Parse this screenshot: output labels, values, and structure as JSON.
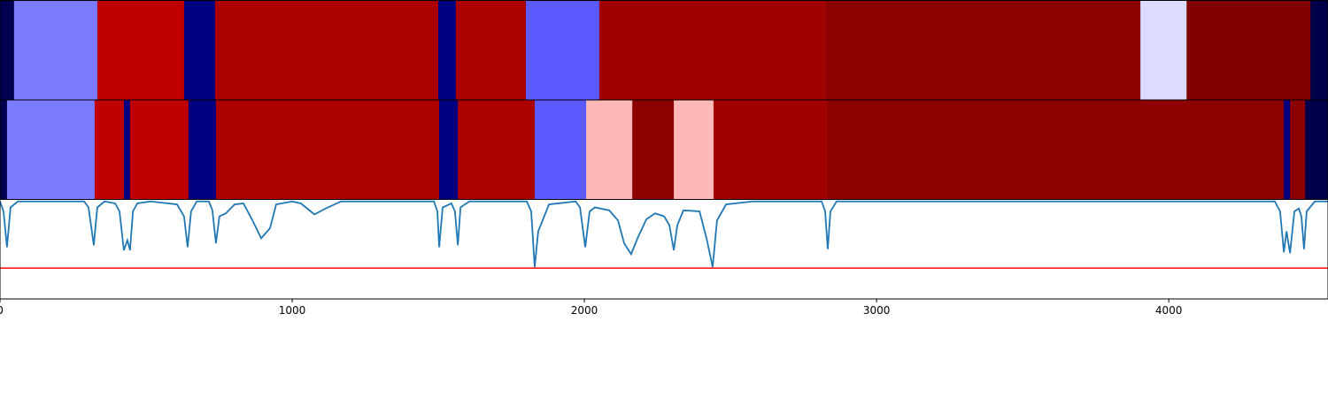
{
  "chart_data": [
    {
      "type": "segments",
      "xlim": [
        0,
        4545
      ],
      "edges": [
        0,
        48,
        333,
        630,
        736,
        1500,
        1560,
        1800,
        2051,
        2827,
        3903,
        4061,
        4485,
        4545
      ],
      "colors": [
        "#000050",
        "#7b7bff",
        "#c00000",
        "#000080",
        "#ac0000",
        "#000080",
        "#ac0000",
        "#5a5aff",
        "#a00000",
        "#8c0000",
        "#dcdcff",
        "#800000",
        "#00004a"
      ]
    },
    {
      "type": "segments",
      "xlim": [
        0,
        4545
      ],
      "edges": [
        0,
        24,
        324,
        424,
        445,
        645,
        739,
        1503,
        1567,
        1830,
        2006,
        2164,
        2306,
        2442,
        2833,
        4394,
        4415,
        4467,
        4545
      ],
      "colors": [
        "#000050",
        "#7b7bff",
        "#c00000",
        "#000080",
        "#c00000",
        "#000080",
        "#ac0000",
        "#000080",
        "#ac0000",
        "#5a5aff",
        "#ffb8b8",
        "#8c0000",
        "#ffb8b8",
        "#a00000",
        "#8c0000",
        "#000080",
        "#8c0000",
        "#00004a"
      ]
    },
    {
      "type": "line",
      "xlim": [
        0,
        4545
      ],
      "ylim": [
        0,
        1
      ],
      "xticks": [
        0,
        1000,
        2000,
        3000,
        4000
      ],
      "color": "#1f77b4",
      "hline": 0.31,
      "hline_color": "#ff0000",
      "x": [
        0,
        12,
        24,
        36,
        61,
        288,
        303,
        321,
        333,
        358,
        394,
        409,
        424,
        436,
        445,
        455,
        470,
        515,
        606,
        630,
        642,
        654,
        673,
        715,
        727,
        739,
        751,
        773,
        803,
        833,
        864,
        894,
        924,
        945,
        1000,
        1030,
        1076,
        1115,
        1167,
        1485,
        1497,
        1503,
        1515,
        1545,
        1557,
        1567,
        1576,
        1606,
        1803,
        1818,
        1830,
        1842,
        1879,
        1970,
        1985,
        2003,
        2018,
        2036,
        2085,
        2115,
        2136,
        2160,
        2182,
        2212,
        2242,
        2273,
        2291,
        2306,
        2318,
        2339,
        2394,
        2418,
        2439,
        2454,
        2485,
        2576,
        2812,
        2824,
        2833,
        2842,
        2863,
        4363,
        4381,
        4394,
        4403,
        4415,
        4430,
        4445,
        4454,
        4463,
        4472,
        4500,
        4545
      ],
      "values": [
        0.98,
        0.88,
        0.52,
        0.92,
        0.98,
        0.98,
        0.92,
        0.54,
        0.92,
        0.98,
        0.96,
        0.88,
        0.49,
        0.59,
        0.49,
        0.88,
        0.96,
        0.98,
        0.95,
        0.83,
        0.52,
        0.88,
        0.98,
        0.98,
        0.89,
        0.56,
        0.83,
        0.86,
        0.95,
        0.96,
        0.79,
        0.61,
        0.71,
        0.95,
        0.98,
        0.96,
        0.85,
        0.91,
        0.98,
        0.98,
        0.88,
        0.52,
        0.92,
        0.96,
        0.88,
        0.54,
        0.92,
        0.98,
        0.98,
        0.88,
        0.32,
        0.68,
        0.95,
        0.98,
        0.92,
        0.52,
        0.88,
        0.92,
        0.89,
        0.79,
        0.56,
        0.45,
        0.61,
        0.8,
        0.86,
        0.83,
        0.74,
        0.49,
        0.74,
        0.89,
        0.88,
        0.61,
        0.32,
        0.79,
        0.95,
        0.98,
        0.98,
        0.88,
        0.5,
        0.88,
        0.98,
        0.98,
        0.88,
        0.47,
        0.68,
        0.46,
        0.88,
        0.91,
        0.83,
        0.5,
        0.88,
        0.98,
        0.98
      ]
    }
  ]
}
